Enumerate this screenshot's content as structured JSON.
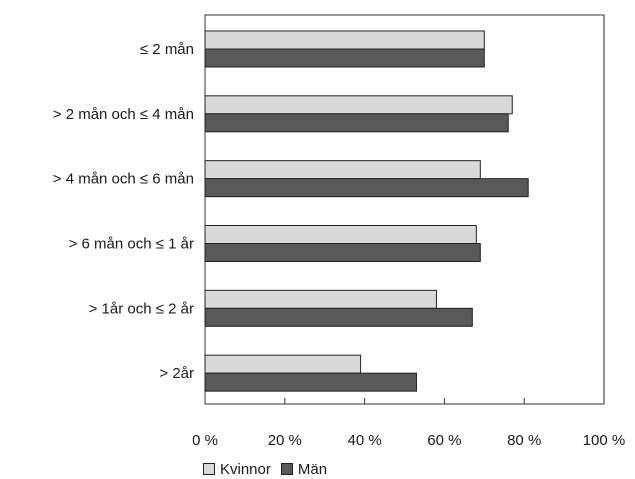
{
  "chart_data": {
    "type": "bar",
    "orientation": "horizontal",
    "categories": [
      "≤ 2 mån",
      "> 2 mån och ≤ 4 mån",
      "> 4 mån och ≤ 6 mån",
      "> 6 mån och ≤ 1 år",
      "> 1år och ≤ 2 år",
      "> 2år"
    ],
    "series": [
      {
        "name": "Kvinnor",
        "color": "#d9d9d9",
        "values": [
          70,
          77,
          69,
          68,
          58,
          39
        ]
      },
      {
        "name": "Män",
        "color": "#595959",
        "values": [
          70,
          76,
          81,
          69,
          67,
          53
        ]
      }
    ],
    "xticks": [
      "0 %",
      "20 %",
      "40 %",
      "60 %",
      "80 %",
      "100 %"
    ],
    "xlim": [
      0,
      100
    ],
    "grid": false,
    "legend_position": "bottom"
  }
}
